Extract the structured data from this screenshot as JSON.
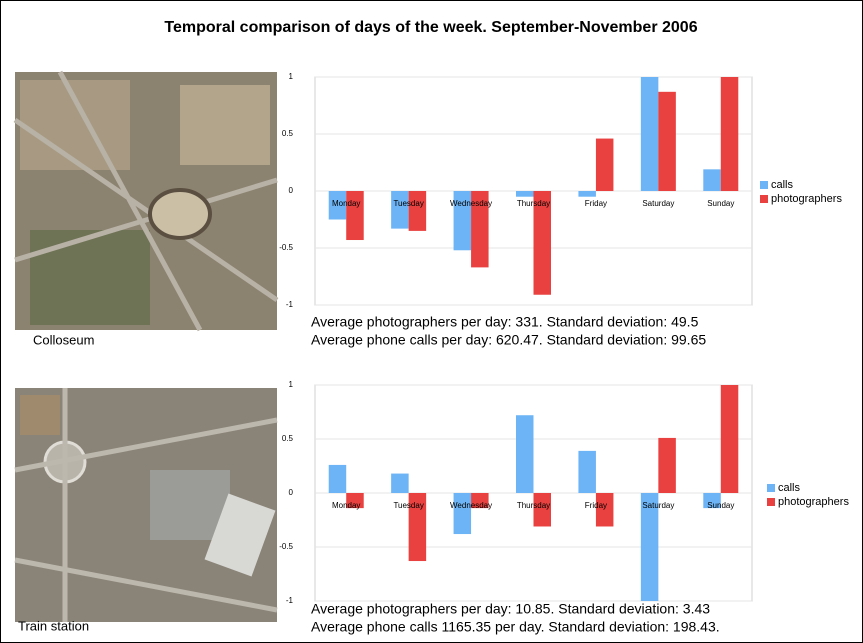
{
  "title": "Temporal comparison of days of the week. September-November 2006",
  "chart_data": [
    {
      "type": "bar",
      "image_label": "Colloseum",
      "annotations": [
        "Average photographers per day: 331. Standard deviation: 49.5",
        "Average phone calls per day: 620.47. Standard deviation: 99.65"
      ],
      "categories": [
        "Monday",
        "Tuesday",
        "Wednesday",
        "Thursday",
        "Friday",
        "Saturday",
        "Sunday"
      ],
      "series": [
        {
          "name": "calls",
          "color": "#6cb4f5",
          "values": [
            -0.25,
            -0.33,
            -0.52,
            -0.05,
            -0.05,
            1.0,
            0.19
          ]
        },
        {
          "name": "photographers",
          "color": "#e8413f",
          "values": [
            -0.43,
            -0.35,
            -0.67,
            -0.91,
            0.46,
            0.87,
            1.0
          ]
        }
      ],
      "ylim": [
        -1,
        1
      ],
      "yticks": [
        -1,
        -0.5,
        0,
        0.5,
        1
      ],
      "grid": true,
      "legend": "right"
    },
    {
      "type": "bar",
      "image_label": "Train station",
      "annotations": [
        "Average photographers per day: 10.85. Standard deviation: 3.43",
        "Average phone calls 1165.35 per day. Standard deviation: 198.43."
      ],
      "categories": [
        "Monday",
        "Tuesday",
        "Wednesday",
        "Thursday",
        "Friday",
        "Saturday",
        "Sunday"
      ],
      "series": [
        {
          "name": "calls",
          "color": "#6cb4f5",
          "values": [
            0.26,
            0.18,
            -0.38,
            0.72,
            0.39,
            -1.0,
            -0.14
          ]
        },
        {
          "name": "photographers",
          "color": "#e8413f",
          "values": [
            -0.14,
            -0.63,
            -0.14,
            -0.31,
            -0.31,
            0.51,
            1.0
          ]
        }
      ],
      "ylim": [
        -1,
        1
      ],
      "yticks": [
        -1,
        -0.5,
        0,
        0.5,
        1
      ],
      "grid": true,
      "legend": "right"
    }
  ]
}
